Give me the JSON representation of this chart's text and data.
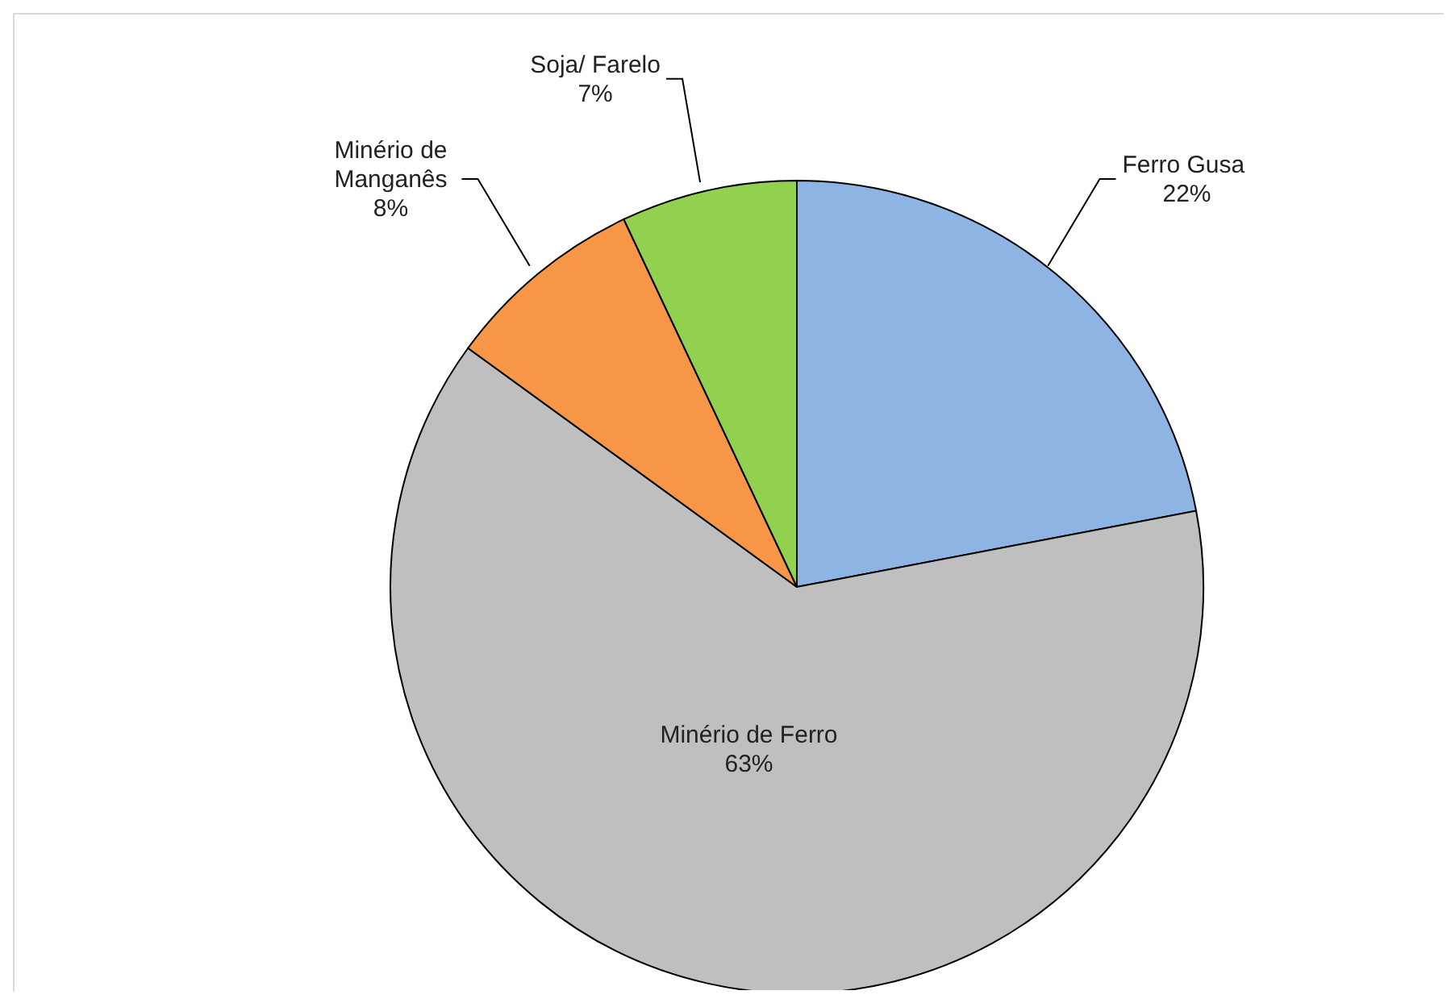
{
  "chart_data": {
    "type": "pie",
    "categories": [
      "Ferro Gusa",
      "Minério de Ferro",
      "Minério de Manganês",
      "Soja/ Farelo"
    ],
    "values": [
      22,
      63,
      8,
      7
    ],
    "colors": [
      "#8eb4e3",
      "#bfbfbf",
      "#f79646",
      "#92d050"
    ],
    "value_labels": [
      "22%",
      "63%",
      "8%",
      "7%"
    ]
  }
}
